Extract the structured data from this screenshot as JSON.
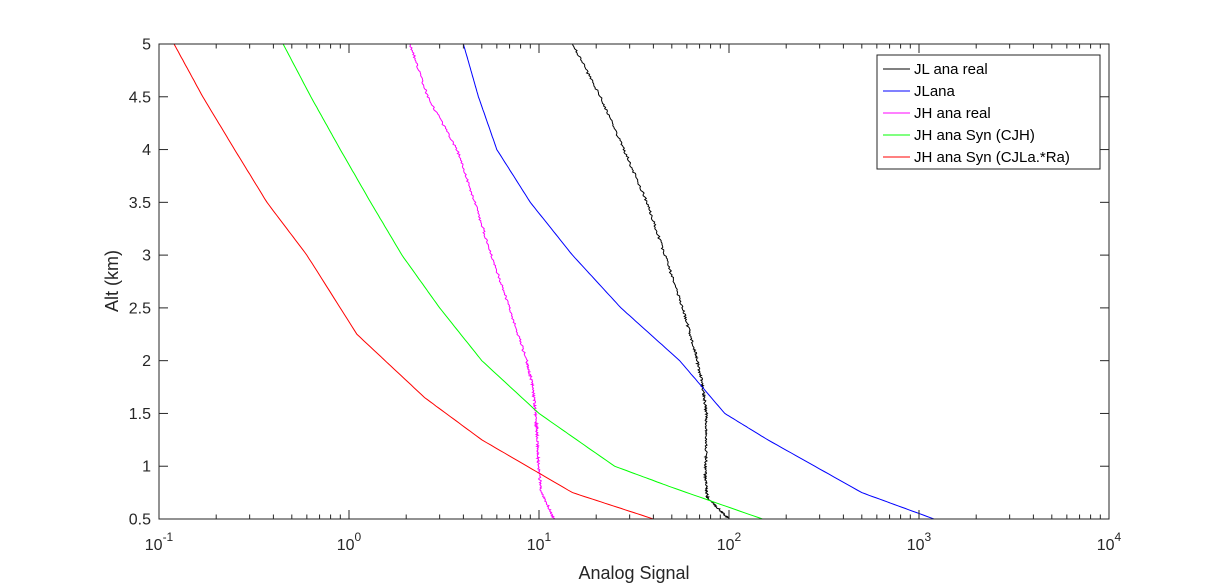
{
  "chart_data": {
    "type": "line",
    "xlabel": "Analog Signal",
    "ylabel": "Alt (km)",
    "xscale": "log",
    "xlim": [
      0.1,
      10000
    ],
    "ylim": [
      0.5,
      5
    ],
    "x_ticks": [
      {
        "value": 0.1,
        "base": "10",
        "exp": "-1"
      },
      {
        "value": 1,
        "base": "10",
        "exp": "0"
      },
      {
        "value": 10,
        "base": "10",
        "exp": "1"
      },
      {
        "value": 100,
        "base": "10",
        "exp": "2"
      },
      {
        "value": 1000,
        "base": "10",
        "exp": "3"
      },
      {
        "value": 10000,
        "base": "10",
        "exp": "4"
      }
    ],
    "y_ticks": [
      "0.5",
      "1",
      "1.5",
      "2",
      "2.5",
      "3",
      "3.5",
      "4",
      "4.5",
      "5"
    ],
    "grid": false,
    "box": true,
    "legend_position": "top-right",
    "series": [
      {
        "name": "JL ana real",
        "color": "#000000",
        "noisy": true,
        "points": [
          [
            100,
            0.5
          ],
          [
            77,
            0.7
          ],
          [
            75,
            0.9
          ],
          [
            76,
            1.2
          ],
          [
            76,
            1.5
          ],
          [
            72,
            1.8
          ],
          [
            66,
            2.1
          ],
          [
            57,
            2.5
          ],
          [
            46,
            3.0
          ],
          [
            37,
            3.5
          ],
          [
            28,
            4.0
          ],
          [
            21,
            4.5
          ],
          [
            15,
            5.0
          ]
        ]
      },
      {
        "name": "JLana",
        "color": "#0000ff",
        "noisy": false,
        "points": [
          [
            1200,
            0.5
          ],
          [
            500,
            0.75
          ],
          [
            160,
            1.25
          ],
          [
            95,
            1.5
          ],
          [
            55,
            2.0
          ],
          [
            27,
            2.5
          ],
          [
            15,
            3.0
          ],
          [
            9,
            3.5
          ],
          [
            6,
            4.0
          ],
          [
            4.8,
            4.5
          ],
          [
            4,
            5.0
          ]
        ]
      },
      {
        "name": "JH ana real",
        "color": "#ff00ff",
        "noisy": true,
        "points": [
          [
            12,
            0.5
          ],
          [
            10.3,
            0.75
          ],
          [
            9.9,
            1.0
          ],
          [
            9.8,
            1.25
          ],
          [
            9.6,
            1.5
          ],
          [
            9.3,
            1.75
          ],
          [
            8.6,
            2.0
          ],
          [
            7.0,
            2.5
          ],
          [
            5.6,
            3.0
          ],
          [
            4.6,
            3.5
          ],
          [
            3.7,
            4.0
          ],
          [
            2.6,
            4.5
          ],
          [
            2.1,
            5.0
          ]
        ]
      },
      {
        "name": "JH ana Syn (CJH)",
        "color": "#00ff00",
        "noisy": false,
        "points": [
          [
            150,
            0.5
          ],
          [
            50,
            0.8
          ],
          [
            25,
            1.0
          ],
          [
            10,
            1.5
          ],
          [
            5,
            2.0
          ],
          [
            3,
            2.5
          ],
          [
            1.9,
            3.0
          ],
          [
            1.3,
            3.5
          ],
          [
            0.9,
            4.0
          ],
          [
            0.63,
            4.5
          ],
          [
            0.45,
            5.0
          ]
        ]
      },
      {
        "name": "JH ana Syn (CJLa.*Ra)",
        "color": "#ff0000",
        "noisy": false,
        "points": [
          [
            40,
            0.5
          ],
          [
            15,
            0.75
          ],
          [
            5,
            1.25
          ],
          [
            2.5,
            1.65
          ],
          [
            1.1,
            2.25
          ],
          [
            0.6,
            3.0
          ],
          [
            0.37,
            3.5
          ],
          [
            0.25,
            4.0
          ],
          [
            0.17,
            4.5
          ],
          [
            0.12,
            5.0
          ]
        ]
      }
    ]
  }
}
